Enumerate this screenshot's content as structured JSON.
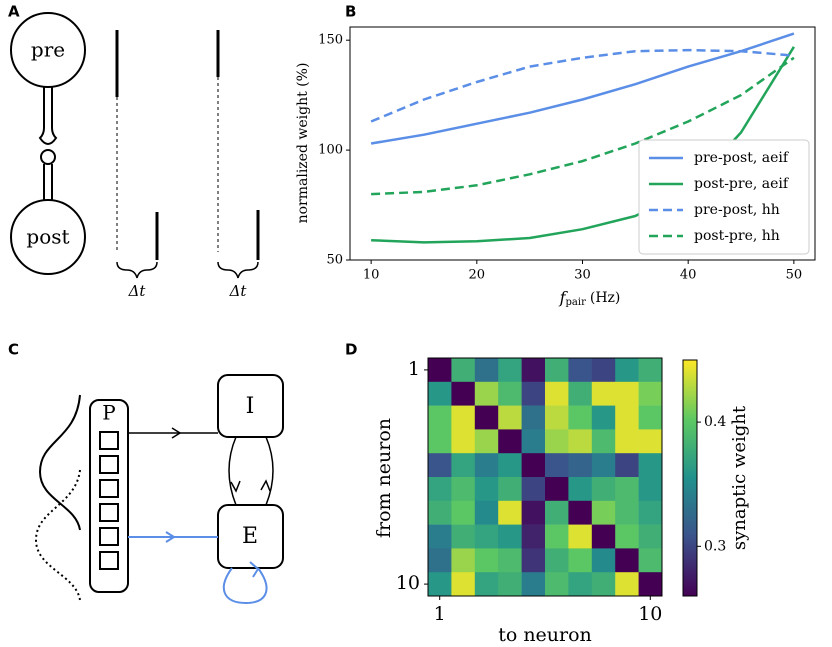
{
  "panels": [
    "A",
    "B",
    "C",
    "D"
  ],
  "diagram_a": {
    "pre": "pre",
    "post": "post",
    "delta": [
      "Δt",
      "Δt"
    ]
  },
  "diagram_c": {
    "population": "P",
    "inhibitory": "I",
    "excitatory": "E"
  },
  "chart_data": [
    {
      "type": "line",
      "x_label": {
        "symbol": "f",
        "subscript": "pair",
        "unit": "(Hz)"
      },
      "y_label": "normalized weight (%)",
      "x": [
        10,
        15,
        20,
        25,
        30,
        35,
        40,
        45,
        50
      ],
      "xlim": [
        8,
        52
      ],
      "xticks": [
        10,
        20,
        30,
        40,
        50
      ],
      "ylim": [
        50,
        156
      ],
      "yticks": [
        50,
        100,
        150
      ],
      "legend": "lower right",
      "series": [
        {
          "name": "pre-post, aeif",
          "color": "#5b8ee6",
          "dash": false,
          "values": [
            103,
            107,
            112,
            117,
            123,
            130,
            138,
            145,
            153
          ]
        },
        {
          "name": "post-pre, aeif",
          "color": "#22a55a",
          "dash": false,
          "values": [
            59,
            58,
            58.5,
            60,
            64,
            70,
            82,
            108,
            147
          ]
        },
        {
          "name": "pre-post, hh",
          "color": "#5b8ee6",
          "dash": true,
          "values": [
            113,
            123,
            131,
            138,
            142,
            145,
            145.5,
            145,
            143
          ]
        },
        {
          "name": "post-pre, hh",
          "color": "#22a55a",
          "dash": true,
          "values": [
            80,
            81,
            84,
            89,
            95,
            103,
            113,
            125,
            142
          ]
        }
      ]
    },
    {
      "type": "heatmap",
      "x_label": "to neuron",
      "y_label": "from neuron",
      "colorbar_label": "synaptic weight",
      "colormap": "viridis",
      "xlim": [
        0.5,
        10.5
      ],
      "xticks": [
        1,
        10
      ],
      "ylim": [
        10.5,
        0.5
      ],
      "yticks": [
        1,
        10
      ],
      "clim": [
        0.26,
        0.45
      ],
      "cticks": [
        0.3,
        0.4
      ],
      "values": [
        [
          0.26,
          0.38,
          0.33,
          0.37,
          0.27,
          0.38,
          0.31,
          0.3,
          0.36,
          0.38
        ],
        [
          0.36,
          0.26,
          0.42,
          0.39,
          0.3,
          0.44,
          0.38,
          0.44,
          0.44,
          0.41
        ],
        [
          0.4,
          0.44,
          0.26,
          0.43,
          0.33,
          0.43,
          0.4,
          0.36,
          0.44,
          0.4
        ],
        [
          0.4,
          0.44,
          0.42,
          0.26,
          0.34,
          0.42,
          0.43,
          0.39,
          0.44,
          0.44
        ],
        [
          0.31,
          0.37,
          0.34,
          0.36,
          0.26,
          0.31,
          0.32,
          0.34,
          0.3,
          0.36
        ],
        [
          0.37,
          0.39,
          0.36,
          0.38,
          0.3,
          0.26,
          0.36,
          0.38,
          0.39,
          0.36
        ],
        [
          0.38,
          0.4,
          0.35,
          0.44,
          0.27,
          0.38,
          0.26,
          0.41,
          0.39,
          0.37
        ],
        [
          0.34,
          0.38,
          0.37,
          0.36,
          0.28,
          0.4,
          0.44,
          0.26,
          0.4,
          0.38
        ],
        [
          0.33,
          0.42,
          0.4,
          0.39,
          0.29,
          0.38,
          0.4,
          0.35,
          0.26,
          0.39
        ],
        [
          0.36,
          0.44,
          0.37,
          0.38,
          0.34,
          0.39,
          0.37,
          0.38,
          0.44,
          0.26
        ]
      ]
    }
  ]
}
